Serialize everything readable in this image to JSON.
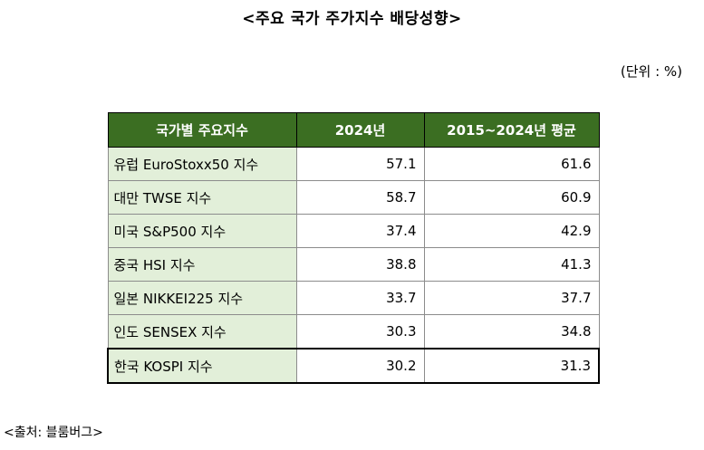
{
  "title": "<주요 국가 주가지수 배당성향>",
  "unit": "(단위 : %)",
  "table": {
    "headers": [
      "국가별 주요지수",
      "2024년",
      "2015~2024년 평균"
    ],
    "rows": [
      {
        "name": "유럽 EuroStoxx50 지수",
        "y2024": "57.1",
        "avg": "61.6"
      },
      {
        "name": "대만 TWSE 지수",
        "y2024": "58.7",
        "avg": "60.9"
      },
      {
        "name": "미국 S&P500 지수",
        "y2024": "37.4",
        "avg": "42.9"
      },
      {
        "name": "중국 HSI 지수",
        "y2024": "38.8",
        "avg": "41.3"
      },
      {
        "name": "일본 NIKKEI225 지수",
        "y2024": "33.7",
        "avg": "37.7"
      },
      {
        "name": "인도 SENSEX 지수",
        "y2024": "30.3",
        "avg": "34.8"
      },
      {
        "name": "한국 KOSPI 지수",
        "y2024": "30.2",
        "avg": "31.3"
      }
    ]
  },
  "source": "<출처: 블룸버그>",
  "colors": {
    "header_bg": "#3b6e22",
    "name_cell_bg": "#e2efd9"
  }
}
